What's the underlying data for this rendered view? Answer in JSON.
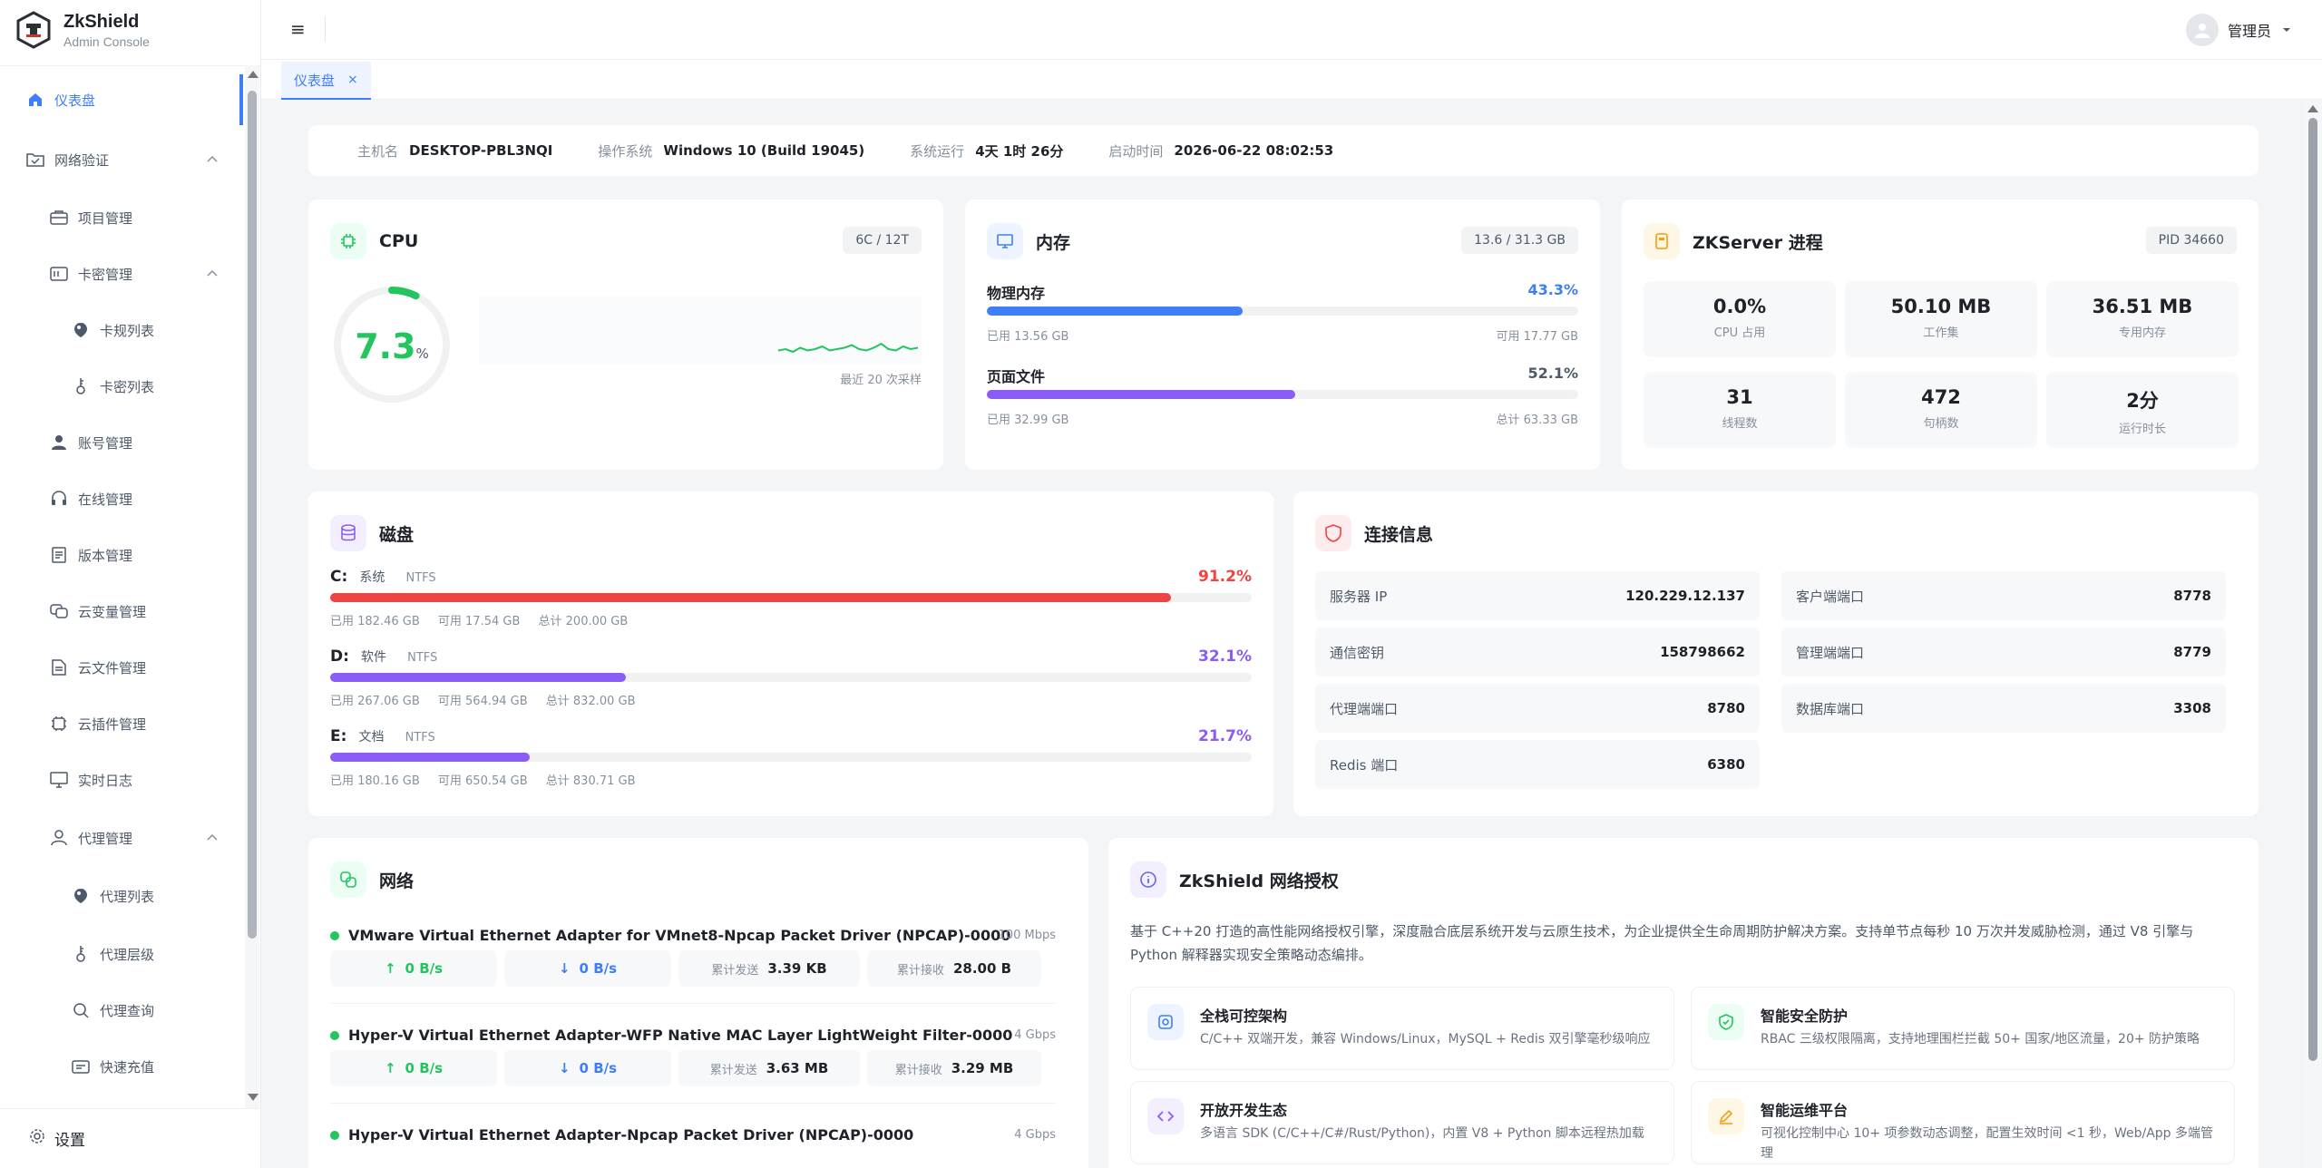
{
  "app": {
    "name": "ZkShield",
    "subtitle": "Admin Console"
  },
  "sidebar": {
    "items": [
      {
        "label": "仪表盘",
        "icon": "home-icon",
        "active": true
      },
      {
        "label": "网络验证",
        "icon": "folder-check-icon",
        "expandable": true
      },
      {
        "label": "项目管理",
        "icon": "briefcase-icon"
      },
      {
        "label": "卡密管理",
        "icon": "card-icon",
        "expandable": true
      },
      {
        "label": "卡规列表",
        "icon": "tag-icon"
      },
      {
        "label": "卡密列表",
        "icon": "key-icon"
      },
      {
        "label": "账号管理",
        "icon": "user-icon"
      },
      {
        "label": "在线管理",
        "icon": "headset-icon"
      },
      {
        "label": "版本管理",
        "icon": "document-icon"
      },
      {
        "label": "云变量管理",
        "icon": "cloud-vars-icon"
      },
      {
        "label": "云文件管理",
        "icon": "file-icon"
      },
      {
        "label": "云插件管理",
        "icon": "plugin-icon"
      },
      {
        "label": "实时日志",
        "icon": "monitor-icon"
      },
      {
        "label": "代理管理",
        "icon": "agent-icon",
        "expandable": true
      },
      {
        "label": "代理列表",
        "icon": "tag-icon"
      },
      {
        "label": "代理层级",
        "icon": "key-icon"
      },
      {
        "label": "代理查询",
        "icon": "search-icon"
      },
      {
        "label": "快速充值",
        "icon": "wallet-icon"
      }
    ],
    "settings_label": "设置"
  },
  "header": {
    "user": "管理员"
  },
  "tabs": [
    {
      "label": "仪表盘",
      "close": "×"
    }
  ],
  "system": {
    "host_label": "主机名",
    "host": "DESKTOP-PBL3NQI",
    "os_label": "操作系统",
    "os": "Windows 10 (Build 19045)",
    "uptime_label": "系统运行",
    "uptime": "4天 1时 26分",
    "boot_label": "启动时间",
    "boot": "2026-06-22 08:02:53"
  },
  "cpu": {
    "title": "CPU",
    "cores": "6C / 12T",
    "value": "7.3",
    "unit": "%",
    "percent": 7.3,
    "sample_label": "最近 20 次采样",
    "samples": [
      5,
      6,
      4,
      7,
      5,
      6,
      8,
      5,
      6,
      7,
      9,
      6,
      5,
      7,
      10,
      6,
      5,
      8,
      6,
      7
    ]
  },
  "memory": {
    "title": "内存",
    "badge": "13.6 / 31.3 GB",
    "physical": {
      "label": "物理内存",
      "percent_text": "43.3%",
      "percent": 43.3,
      "used": "已用 13.56 GB",
      "avail": "可用 17.77 GB"
    },
    "pagefile": {
      "label": "页面文件",
      "percent_text": "52.1%",
      "percent": 52.1,
      "used": "已用 32.99 GB",
      "total": "总计 63.33 GB"
    }
  },
  "zkserver": {
    "title": "ZKServer 进程",
    "pid": "PID 34660",
    "stats": [
      {
        "value": "0.0%",
        "label": "CPU 占用"
      },
      {
        "value": "50.10 MB",
        "label": "工作集"
      },
      {
        "value": "36.51 MB",
        "label": "专用内存"
      },
      {
        "value": "31",
        "label": "线程数"
      },
      {
        "value": "472",
        "label": "句柄数"
      },
      {
        "value": "2分",
        "label": "运行时长"
      }
    ]
  },
  "disk": {
    "title": "磁盘",
    "drives": [
      {
        "letter": "C:",
        "name": "系统",
        "fs": "NTFS",
        "percent_text": "91.2%",
        "percent": 91.2,
        "color": "#ef4444",
        "used": "已用 182.46 GB",
        "avail": "可用 17.54 GB",
        "total": "总计 200.00 GB"
      },
      {
        "letter": "D:",
        "name": "软件",
        "fs": "NTFS",
        "percent_text": "32.1%",
        "percent": 32.1,
        "color": "#8b5cf6",
        "used": "已用 267.06 GB",
        "avail": "可用 564.94 GB",
        "total": "总计 832.00 GB"
      },
      {
        "letter": "E:",
        "name": "文档",
        "fs": "NTFS",
        "percent_text": "21.7%",
        "percent": 21.7,
        "color": "#8b5cf6",
        "used": "已用 180.16 GB",
        "avail": "可用 650.54 GB",
        "total": "总计 830.71 GB"
      }
    ]
  },
  "connection": {
    "title": "连接信息",
    "items": [
      {
        "label": "服务器 IP",
        "value": "120.229.12.137"
      },
      {
        "label": "客户端端口",
        "value": "8778"
      },
      {
        "label": "通信密钥",
        "value": "158798662"
      },
      {
        "label": "管理端端口",
        "value": "8779"
      },
      {
        "label": "代理端端口",
        "value": "8780"
      },
      {
        "label": "数据库端口",
        "value": "3308"
      },
      {
        "label": "Redis 端口",
        "value": "6380"
      }
    ]
  },
  "network": {
    "title": "网络",
    "sent_label": "累计发送",
    "recv_label": "累计接收",
    "adapters": [
      {
        "name": "VMware Virtual Ethernet Adapter for VMnet8-Npcap Packet Driver (NPCAP)-0000",
        "speed": "100 Mbps",
        "up": "0 B/s",
        "down": "0 B/s",
        "sent": "3.39 KB",
        "recv": "28.00 B"
      },
      {
        "name": "Hyper-V Virtual Ethernet Adapter-WFP Native MAC Layer LightWeight Filter-0000",
        "speed": "4 Gbps",
        "up": "0 B/s",
        "down": "0 B/s",
        "sent": "3.63 MB",
        "recv": "3.29 MB"
      },
      {
        "name": "Hyper-V Virtual Ethernet Adapter-Npcap Packet Driver (NPCAP)-0000",
        "speed": "4 Gbps"
      }
    ]
  },
  "about": {
    "title": "ZkShield 网络授权",
    "desc": "基于 C++20 打造的高性能网络授权引擎，深度融合底层系统开发与云原生技术，为企业提供全生命周期防护解决方案。支持单节点每秒 10 万次并发威胁检测，通过 V8 引擎与 Python 解释器实现安全策略动态编排。",
    "features": [
      {
        "title": "全栈可控架构",
        "desc": "C/C++ 双端开发，兼容 Windows/Linux，MySQL + Redis 双引擎毫秒级响应",
        "icon": "settings-gear-icon",
        "color": "#3e7ef7",
        "bg": "#eef4ff"
      },
      {
        "title": "智能安全防护",
        "desc": "RBAC 三级权限隔离，支持地理围栏拦截 50+ 国家/地区流量，20+ 防护策略",
        "icon": "shield-check-icon",
        "color": "#22c55e",
        "bg": "#ecfdf3"
      },
      {
        "title": "开放开发生态",
        "desc": "多语言 SDK (C/C++/C#/Rust/Python)，内置 V8 + Python 脚本远程热加载",
        "icon": "code-icon",
        "color": "#8b5cf6",
        "bg": "#f3efff"
      },
      {
        "title": "智能运维平台",
        "desc": "可视化控制中心 10+ 项参数动态调整，配置生效时间 <1 秒，Web/App 多端管理",
        "icon": "pen-icon",
        "color": "#f59e0b",
        "bg": "#fff7e6"
      }
    ]
  }
}
